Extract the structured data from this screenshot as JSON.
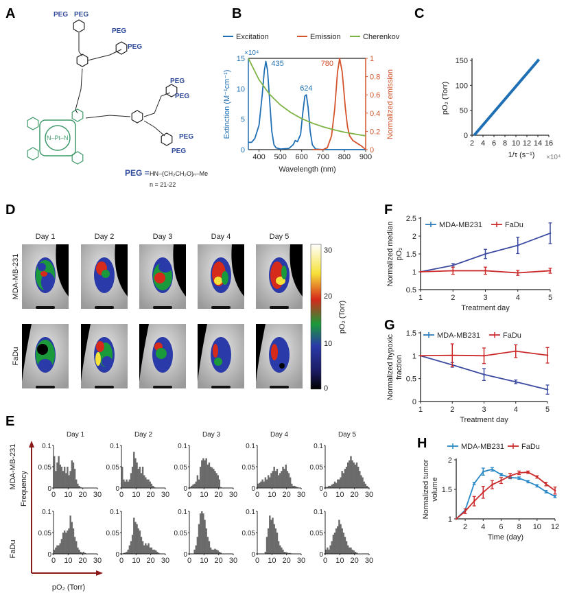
{
  "panels": {
    "A": "A",
    "B": "B",
    "C": "C",
    "D": "D",
    "E": "E",
    "F": "F",
    "G": "G",
    "H": "H"
  },
  "panel_a": {
    "peg_label": "PEG",
    "peg_definition_label": "PEG =",
    "peg_formula": "HN–(CH₂CH₂O)ₙ–Me",
    "n_range": "n = 21-22",
    "metal_center": "N–Pt–N",
    "colors": {
      "porphyrin": "#3f9a6a",
      "peg": "#2f4a9a"
    }
  },
  "chart_data": [
    {
      "id": "B",
      "type": "line",
      "legend": [
        "Excitation",
        "Emission",
        "Cherenkov"
      ],
      "legend_placement": "top",
      "xlabel": "Wavelength (nm)",
      "ylabel": "Extinction (M⁻¹cm⁻¹)",
      "ylabel_right": "Normalized emission",
      "y_multiplier": "×10⁴",
      "xlim": [
        350,
        900
      ],
      "ylim": [
        0,
        15
      ],
      "ylim_right": [
        0,
        1
      ],
      "xticks": [
        400,
        500,
        600,
        700,
        800,
        900
      ],
      "yticks": [
        0,
        5,
        10,
        15
      ],
      "yticks_right": [
        0,
        0.2,
        0.4,
        0.6,
        0.8,
        1
      ],
      "annotations": [
        {
          "text": "435",
          "x": 435
        },
        {
          "text": "624",
          "x": 624
        },
        {
          "text": "780",
          "x": 780
        }
      ],
      "series": [
        {
          "name": "Excitation",
          "axis": "left",
          "color": "#1f6fb4",
          "x": [
            350,
            365,
            380,
            400,
            415,
            425,
            432,
            440,
            450,
            460,
            470,
            480,
            500,
            540,
            560,
            570,
            580,
            595,
            605,
            615,
            622,
            630,
            640,
            650,
            665,
            700,
            900
          ],
          "y": [
            1.2,
            1.2,
            1.8,
            4,
            9,
            13,
            14.5,
            13,
            8,
            3,
            0.8,
            0.3,
            0.1,
            0.2,
            0.8,
            1.5,
            1.3,
            2.5,
            6,
            8.8,
            9,
            7,
            3,
            0.8,
            0.1,
            0,
            0
          ]
        },
        {
          "name": "Emission",
          "axis": "right",
          "color": "#d4532b",
          "x": [
            650,
            700,
            720,
            740,
            755,
            768,
            778,
            790,
            805,
            815,
            825,
            840,
            860,
            880,
            900
          ],
          "y": [
            0,
            0,
            0.02,
            0.15,
            0.45,
            0.85,
            1,
            0.85,
            0.45,
            0.25,
            0.15,
            0.1,
            0.07,
            0.04,
            0
          ]
        },
        {
          "name": "Cherenkov",
          "axis": "right",
          "color": "#7cb342",
          "x": [
            350,
            400,
            450,
            500,
            550,
            600,
            650,
            700,
            750,
            800,
            850,
            900
          ],
          "y": [
            1,
            0.766,
            0.605,
            0.49,
            0.405,
            0.34,
            0.29,
            0.25,
            0.218,
            0.191,
            0.17,
            0.151
          ]
        }
      ]
    },
    {
      "id": "C",
      "type": "line",
      "xlabel": "1/τ (s⁻¹)",
      "x_multiplier": "×10⁴",
      "ylabel": "pO₂ (Torr)",
      "xlim": [
        2,
        16
      ],
      "ylim": [
        0,
        150
      ],
      "xticks": [
        2,
        4,
        6,
        8,
        10,
        12,
        14,
        16
      ],
      "yticks": [
        0,
        50,
        100,
        150
      ],
      "series": [
        {
          "color": "#1f6fb4",
          "x": [
            2.4,
            14.2
          ],
          "y": [
            0,
            152
          ]
        }
      ]
    },
    {
      "id": "F",
      "type": "line",
      "xlabel": "Treatment day",
      "ylabel": "Normalized median pO₂",
      "xlim": [
        1,
        5
      ],
      "ylim": [
        0.5,
        2.5
      ],
      "xticks": [
        1,
        2,
        3,
        4,
        5
      ],
      "yticks": [
        0.5,
        1,
        1.5,
        2,
        2.5
      ],
      "legend_placement": "top-left",
      "series": [
        {
          "name": "MDA-MB231",
          "color": "#3b4aa0",
          "marker_color": "#2a7ab8",
          "x": [
            1,
            2,
            3,
            4,
            5
          ],
          "y": [
            1,
            1.18,
            1.5,
            1.74,
            2.08
          ],
          "err": [
            0,
            0.05,
            0.13,
            0.23,
            0.29
          ]
        },
        {
          "name": "FaDu",
          "color": "#cc2a2a",
          "marker_color": "#cc2a2a",
          "x": [
            1,
            2,
            3,
            4,
            5
          ],
          "y": [
            1,
            1.03,
            1.03,
            0.97,
            1.03
          ],
          "err": [
            0,
            0.1,
            0.1,
            0.07,
            0.07
          ]
        }
      ]
    },
    {
      "id": "G",
      "type": "line",
      "xlabel": "Treatment day",
      "ylabel": "Normalized hypoxic fraction",
      "xlim": [
        1,
        5
      ],
      "ylim": [
        0,
        1.5
      ],
      "xticks": [
        1,
        2,
        3,
        4,
        5
      ],
      "yticks": [
        0,
        0.5,
        1,
        1.5
      ],
      "legend_placement": "top-left",
      "series": [
        {
          "name": "MDA-MB231",
          "color": "#3b4aa0",
          "marker_color": "#2a7ab8",
          "x": [
            1,
            2,
            3,
            4,
            5
          ],
          "y": [
            1,
            0.8,
            0.59,
            0.43,
            0.26
          ],
          "err": [
            0,
            0.05,
            0.13,
            0.04,
            0.1
          ]
        },
        {
          "name": "FaDu",
          "color": "#cc2a2a",
          "marker_color": "#cc2a2a",
          "x": [
            1,
            2,
            3,
            4,
            5
          ],
          "y": [
            1,
            1.01,
            1.0,
            1.1,
            1.01
          ],
          "err": [
            0,
            0.25,
            0.17,
            0.14,
            0.17
          ]
        }
      ]
    },
    {
      "id": "H",
      "type": "line",
      "xlabel": "Time (day)",
      "ylabel": "Normalized tumor volume",
      "xlim": [
        1,
        12
      ],
      "ylim": [
        1,
        2.1
      ],
      "xticks": [
        2,
        4,
        6,
        8,
        10,
        12
      ],
      "yticks": [
        1,
        1.5,
        2
      ],
      "legend_placement": "top",
      "series": [
        {
          "name": "MDA-MB231",
          "color": "#2a8ac8",
          "marker_color": "#2a8ac8",
          "x": [
            1,
            2,
            3,
            4,
            5,
            6,
            7,
            8,
            9,
            10,
            11,
            12
          ],
          "y": [
            1,
            1.15,
            1.6,
            1.8,
            1.84,
            1.75,
            1.7,
            1.69,
            1.63,
            1.56,
            1.46,
            1.38
          ],
          "err": [
            0,
            0,
            0.02,
            0.06,
            0.03,
            0.02,
            0.02,
            0.02,
            0.02,
            0.02,
            0.02,
            0.02
          ]
        },
        {
          "name": "FaDu",
          "color": "#cc2a2a",
          "marker_color": "#cc2a2a",
          "x": [
            1,
            2,
            3,
            4,
            5,
            6,
            7,
            8,
            9,
            10,
            11,
            12
          ],
          "y": [
            1,
            1.13,
            1.3,
            1.45,
            1.58,
            1.65,
            1.73,
            1.78,
            1.79,
            1.71,
            1.59,
            1.48
          ],
          "err": [
            0,
            0.04,
            0.08,
            0.1,
            0.07,
            0.05,
            0.04,
            0.03,
            0.02,
            0.02,
            0.03,
            0.06
          ]
        }
      ]
    },
    {
      "id": "E",
      "type": "bar",
      "xlabel": "pO₂ (Torr)",
      "ylabel": "Frequency",
      "xlim": [
        0,
        30
      ],
      "ylim": [
        0,
        0.1
      ],
      "xticks": [
        0,
        10,
        20,
        30
      ],
      "yticks": [
        0,
        0.05,
        0.1
      ],
      "bin_width": 1,
      "bar_color": "#6b6b6b",
      "rows": [
        "MDA-MB-231",
        "FaDu"
      ],
      "columns": [
        "Day 1",
        "Day 2",
        "Day 3",
        "Day 4",
        "Day 5"
      ],
      "histograms": [
        [
          [
            0.075,
            0.04,
            0.06,
            0.075,
            0.055,
            0.05,
            0.04,
            0.05,
            0.035,
            0.05,
            0.03,
            0.04,
            0.065,
            0.06,
            0.045,
            0.02,
            0.01,
            0.005,
            0.002
          ],
          [
            0.05,
            0.02,
            0.015,
            0.02,
            0.015,
            0.02,
            0.035,
            0.05,
            0.085,
            0.07,
            0.06,
            0.045,
            0.05,
            0.035,
            0.05,
            0.03,
            0.025,
            0.02,
            0.02,
            0.015,
            0.01,
            0.005,
            0.002
          ],
          [
            0.002,
            0.005,
            0.008,
            0.01,
            0.015,
            0.03,
            0.02,
            0.05,
            0.065,
            0.07,
            0.065,
            0.07,
            0.055,
            0.06,
            0.05,
            0.048,
            0.045,
            0.04,
            0.035,
            0.03,
            0.02,
            0.002
          ],
          [
            0.01,
            0.012,
            0.015,
            0.02,
            0.015,
            0.025,
            0.02,
            0.03,
            0.025,
            0.035,
            0.04,
            0.05,
            0.04,
            0.045,
            0.03,
            0.035,
            0.04,
            0.05,
            0.045,
            0.055,
            0.04,
            0.035,
            0.025,
            0.01,
            0.005,
            0.005,
            0.003,
            0.002
          ],
          [
            0.002,
            0.003,
            0.005,
            0.005,
            0.008,
            0.01,
            0.015,
            0.012,
            0.02,
            0.02,
            0.025,
            0.04,
            0.035,
            0.045,
            0.05,
            0.06,
            0.065,
            0.075,
            0.065,
            0.06,
            0.055,
            0.06,
            0.05,
            0.04,
            0.03,
            0.025,
            0.015,
            0.01,
            0.005,
            0.002
          ]
        ],
        [
          [
            0.01,
            0.015,
            0.02,
            0.02,
            0.025,
            0.035,
            0.05,
            0.055,
            0.05,
            0.055,
            0.06,
            0.09,
            0.075,
            0.06,
            0.04,
            0.03,
            0.015,
            0.01,
            0.005,
            0.003,
            0.005,
            0.002
          ],
          [
            0,
            0.002,
            0.003,
            0.005,
            0.01,
            0.02,
            0.03,
            0.045,
            0.085,
            0.075,
            0.07,
            0.06,
            0.055,
            0.04,
            0.03,
            0.02,
            0.025,
            0.02,
            0.025,
            0.015,
            0.015,
            0.01,
            0.01,
            0.008,
            0.005,
            0.002
          ],
          [
            0,
            0,
            0,
            0.01,
            0.02,
            0.04,
            0.07,
            0.095,
            0.1,
            0.095,
            0.08,
            0.06,
            0.04,
            0.03,
            0.015,
            0.01,
            0.01,
            0.012,
            0.01,
            0.008,
            0.005,
            0.003
          ],
          [
            0,
            0,
            0,
            0,
            0,
            0.005,
            0.04,
            0.06,
            0.09,
            0.08,
            0.085,
            0.07,
            0.06,
            0.05,
            0.03,
            0.02,
            0.015,
            0.01,
            0.005,
            0.004,
            0.003,
            0.002,
            0.002,
            0.001
          ],
          [
            0.01,
            0.015,
            0.01,
            0.02,
            0.03,
            0.045,
            0.05,
            0.06,
            0.065,
            0.08,
            0.07,
            0.06,
            0.05,
            0.04,
            0.03,
            0.02,
            0.015,
            0.015,
            0.01,
            0.008,
            0.005,
            0.003
          ]
        ]
      ]
    }
  ],
  "panel_d": {
    "columns": [
      "Day 1",
      "Day 2",
      "Day 3",
      "Day 4",
      "Day 5"
    ],
    "rows": [
      "MDA-MB-231",
      "FaDu"
    ],
    "colorbar": {
      "label": "pO₂ (Torr)",
      "ticks": [
        "0",
        "10",
        "20",
        "30"
      ],
      "range": [
        0,
        30
      ],
      "colors": [
        "#000000",
        "#2a3aa8",
        "#1a9a3a",
        "#d62a1a",
        "#f6e23a",
        "#ffffff"
      ]
    }
  }
}
